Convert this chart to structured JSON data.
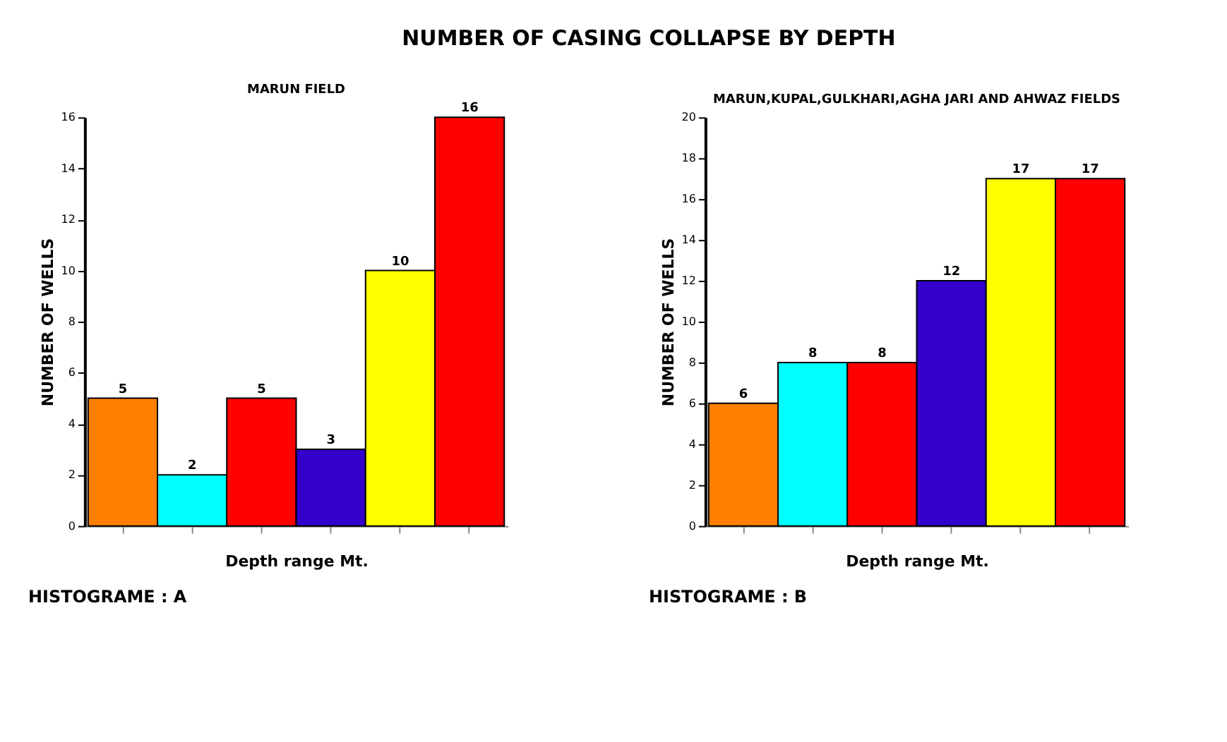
{
  "chart_data": [
    {
      "type": "other",
      "title": "NUMBER OF CASING COLLAPSE BY DEPTH"
    },
    {
      "type": "bar",
      "title": "MARUN FIELD",
      "xlabel": "Depth range Mt.",
      "ylabel": "NUMBER OF WELLS",
      "categories": [
        null,
        null,
        null,
        null,
        null,
        null
      ],
      "values": [
        5,
        2,
        5,
        3,
        10,
        16
      ],
      "colors": [
        "#ff8000",
        "#00ffff",
        "#ff0000",
        "#3300cc",
        "#ffff00",
        "#ff0000"
      ],
      "ylim": [
        0,
        16
      ],
      "yticks": [
        0,
        2,
        4,
        6,
        8,
        10,
        12,
        14,
        16
      ],
      "grid": false,
      "data_labels": true,
      "annotations": [
        "HISTOGRAME : A"
      ]
    },
    {
      "type": "bar",
      "title": "MARUN,KUPAL,GULKHARI,AGHA JARI AND AHWAZ FIELDS",
      "xlabel": "Depth range Mt.",
      "ylabel": "NUMBER OF WELLS",
      "categories": [
        null,
        null,
        null,
        null,
        null,
        null
      ],
      "values": [
        6,
        8,
        8,
        12,
        17,
        17
      ],
      "colors": [
        "#ff8000",
        "#00ffff",
        "#ff0000",
        "#3300cc",
        "#ffff00",
        "#ff0000"
      ],
      "ylim": [
        0,
        20
      ],
      "yticks": [
        0,
        2,
        4,
        6,
        8,
        10,
        12,
        14,
        16,
        18,
        20
      ],
      "grid": false,
      "data_labels": true,
      "annotations": [
        "HISTOGRAME : B"
      ]
    }
  ]
}
